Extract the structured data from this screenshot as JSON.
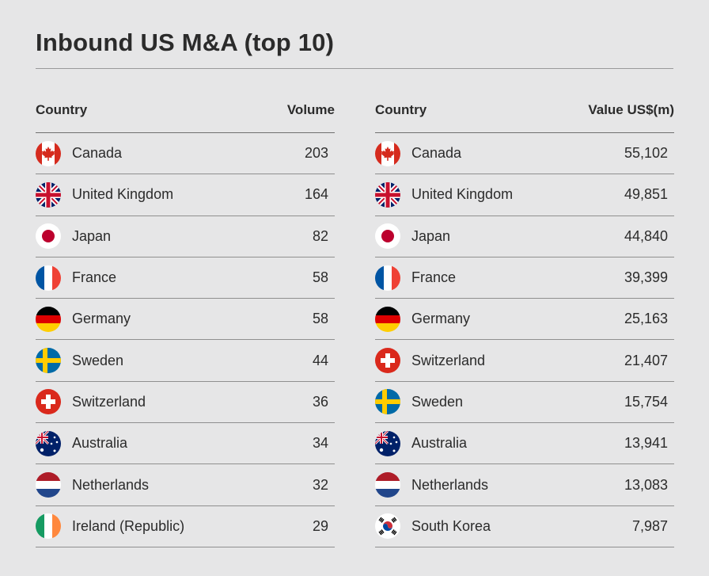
{
  "title": "Inbound US M&A (top 10)",
  "chart_data": [
    {
      "type": "table",
      "columns": [
        "Country",
        "Volume"
      ],
      "rows": [
        {
          "country": "Canada",
          "value": "203",
          "flag": "canada-flag-icon"
        },
        {
          "country": "United Kingdom",
          "value": "164",
          "flag": "uk-flag-icon"
        },
        {
          "country": "Japan",
          "value": "82",
          "flag": "japan-flag-icon"
        },
        {
          "country": "France",
          "value": "58",
          "flag": "france-flag-icon"
        },
        {
          "country": "Germany",
          "value": "58",
          "flag": "germany-flag-icon"
        },
        {
          "country": "Sweden",
          "value": "44",
          "flag": "sweden-flag-icon"
        },
        {
          "country": "Switzerland",
          "value": "36",
          "flag": "switzerland-flag-icon"
        },
        {
          "country": "Australia",
          "value": "34",
          "flag": "australia-flag-icon"
        },
        {
          "country": "Netherlands",
          "value": "32",
          "flag": "netherlands-flag-icon"
        },
        {
          "country": "Ireland (Republic)",
          "value": "29",
          "flag": "ireland-flag-icon"
        }
      ]
    },
    {
      "type": "table",
      "columns": [
        "Country",
        "Value US$(m)"
      ],
      "rows": [
        {
          "country": "Canada",
          "value": "55,102",
          "flag": "canada-flag-icon"
        },
        {
          "country": "United Kingdom",
          "value": "49,851",
          "flag": "uk-flag-icon"
        },
        {
          "country": "Japan",
          "value": "44,840",
          "flag": "japan-flag-icon"
        },
        {
          "country": "France",
          "value": "39,399",
          "flag": "france-flag-icon"
        },
        {
          "country": "Germany",
          "value": "25,163",
          "flag": "germany-flag-icon"
        },
        {
          "country": "Switzerland",
          "value": "21,407",
          "flag": "switzerland-flag-icon"
        },
        {
          "country": "Sweden",
          "value": "15,754",
          "flag": "sweden-flag-icon"
        },
        {
          "country": "Australia",
          "value": "13,941",
          "flag": "australia-flag-icon"
        },
        {
          "country": "Netherlands",
          "value": "13,083",
          "flag": "netherlands-flag-icon"
        },
        {
          "country": "South Korea",
          "value": "7,987",
          "flag": "south-korea-flag-icon"
        }
      ]
    }
  ]
}
